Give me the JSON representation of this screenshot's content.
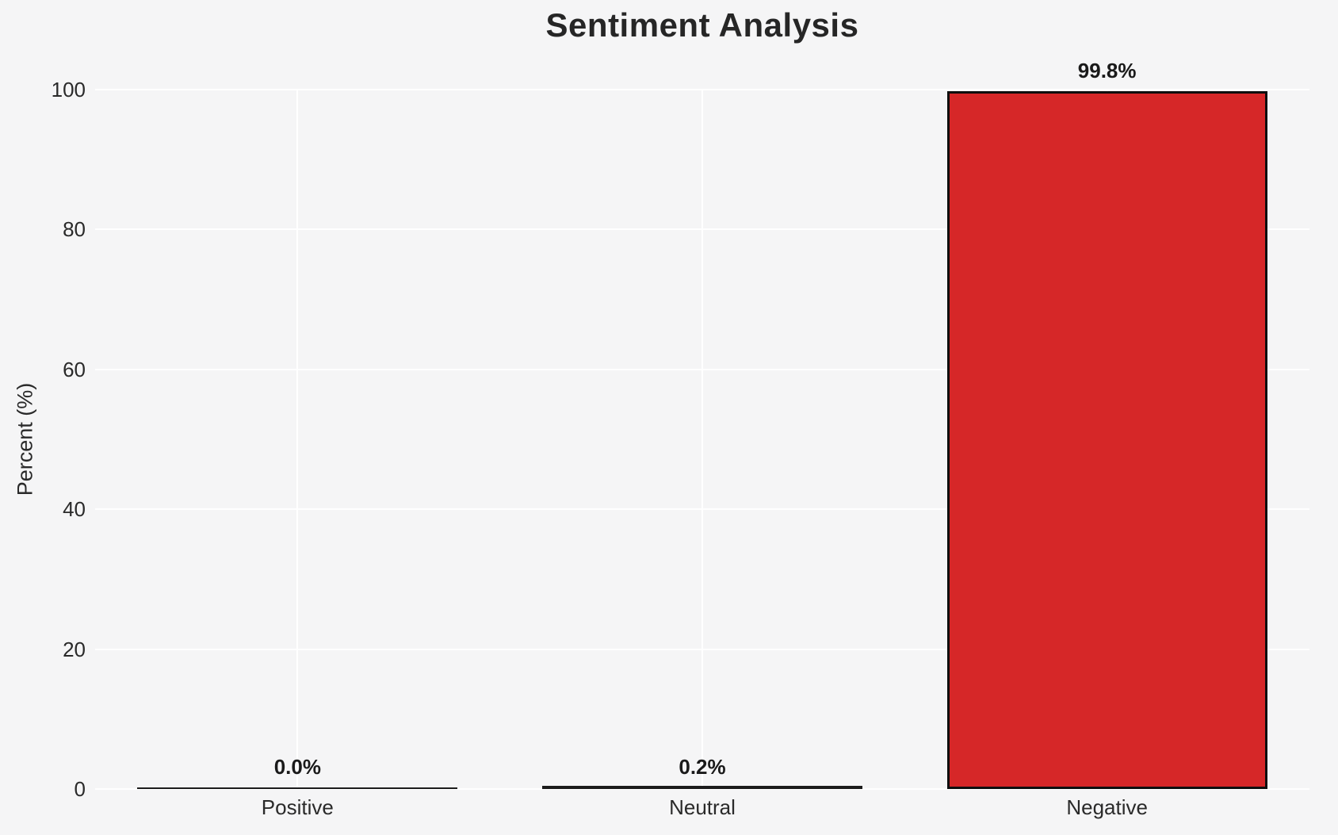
{
  "chart_data": {
    "type": "bar",
    "title": "Sentiment Analysis",
    "xlabel": "",
    "ylabel": "Percent (%)",
    "categories": [
      "Positive",
      "Neutral",
      "Negative"
    ],
    "values": [
      0.0,
      0.2,
      99.8
    ],
    "data_labels": [
      "0.0%",
      "0.2%",
      "99.8%"
    ],
    "ylim": [
      0,
      100
    ],
    "yticks": [
      0,
      20,
      40,
      60,
      80,
      100
    ],
    "grid": true,
    "legend": false,
    "colors": {
      "bar_fill": "#d62728",
      "bar_edge": "#0e0e0e",
      "flat_bar_line": "#1c1c1c",
      "background": "#f5f5f6",
      "gridline": "#ffffff",
      "title_text": "#262626",
      "tick_text": "#2a2a2a",
      "value_text": "#1a1a1a"
    }
  }
}
